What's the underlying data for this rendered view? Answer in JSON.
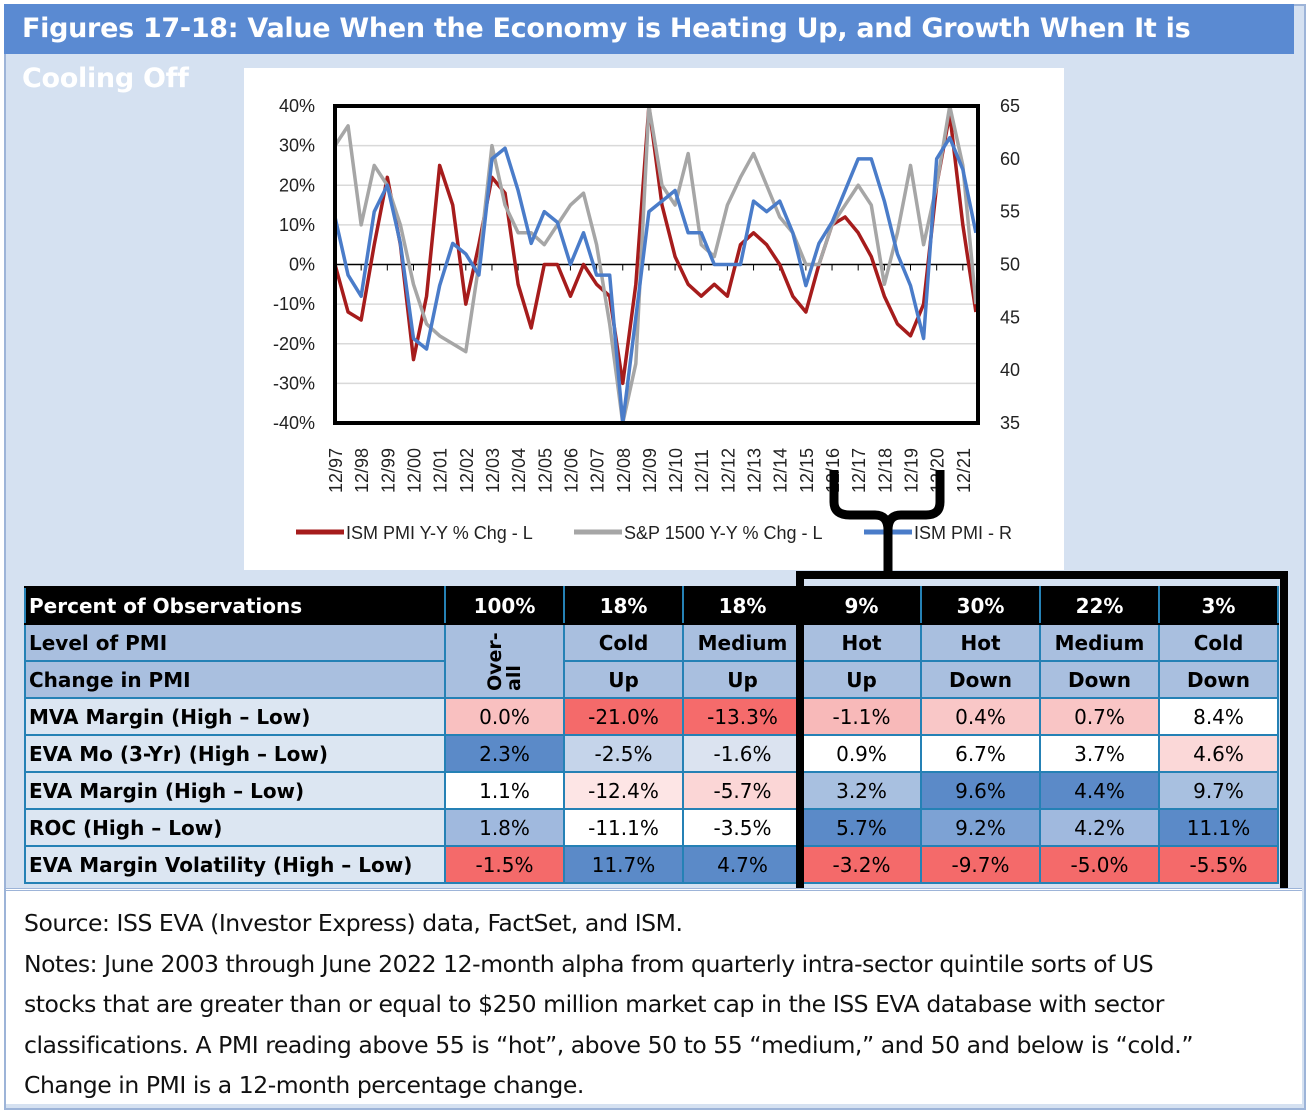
{
  "title": "Figures 17-18: Value When the Economy is Heating Up, and Growth When It is Cooling Off",
  "chart_data": {
    "type": "line",
    "x_labels": [
      "12/97",
      "12/98",
      "12/99",
      "12/00",
      "12/01",
      "12/02",
      "12/03",
      "12/04",
      "12/05",
      "12/06",
      "12/07",
      "12/08",
      "12/09",
      "12/10",
      "12/11",
      "12/12",
      "12/13",
      "12/14",
      "12/15",
      "12/16",
      "12/17",
      "12/18",
      "12/19",
      "12/20",
      "12/21"
    ],
    "x_start": 1997.92,
    "x_end": 2022.42,
    "x_step": 0.5,
    "left_axis": {
      "ticks": [
        "40%",
        "30%",
        "20%",
        "10%",
        "0%",
        "-10%",
        "-20%",
        "-30%",
        "-40%"
      ],
      "range": [
        -40,
        40
      ]
    },
    "right_axis": {
      "ticks": [
        "65",
        "60",
        "55",
        "50",
        "45",
        "40",
        "35"
      ],
      "range": [
        35,
        65
      ]
    },
    "series": [
      {
        "name": "ISM PMI Y-Y % Chg - L",
        "axis": "left",
        "color": "#a61c1c",
        "values": [
          0,
          -12,
          -14,
          5,
          22,
          5,
          -24,
          -8,
          25,
          15,
          -10,
          5,
          22,
          18,
          -5,
          -16,
          0,
          0,
          -8,
          0,
          -5,
          -8,
          -30,
          -5,
          40,
          15,
          2,
          -5,
          -8,
          -5,
          -8,
          5,
          8,
          5,
          0,
          -8,
          -12,
          0,
          10,
          12,
          8,
          2,
          -8,
          -15,
          -18,
          -10,
          20,
          38,
          10,
          -12
        ]
      },
      {
        "name": "S&P 1500 Y-Y % Chg - L",
        "axis": "left",
        "color": "#a6a6a6",
        "values": [
          30,
          35,
          10,
          25,
          20,
          10,
          -5,
          -15,
          -18,
          -20,
          -22,
          0,
          30,
          15,
          8,
          8,
          5,
          10,
          15,
          18,
          5,
          -15,
          -40,
          -25,
          40,
          20,
          15,
          28,
          5,
          2,
          15,
          22,
          28,
          20,
          12,
          8,
          0,
          0,
          10,
          15,
          20,
          15,
          -5,
          8,
          25,
          5,
          20,
          40,
          25,
          -10
        ]
      },
      {
        "name": "ISM PMI - R",
        "axis": "right",
        "color": "#4a7cc9",
        "values": [
          54.5,
          49,
          47,
          55,
          57.5,
          52,
          43,
          42,
          48,
          52,
          51,
          49,
          60,
          61,
          57,
          52,
          55,
          54,
          50,
          53,
          49,
          49,
          35,
          45,
          55,
          56,
          57,
          53,
          53,
          50,
          50,
          50,
          56,
          55,
          56,
          53,
          48,
          52,
          54,
          57,
          60,
          60,
          56,
          51,
          48,
          43,
          60,
          62,
          59,
          53
        ]
      }
    ],
    "legend_position": "bottom"
  },
  "table": {
    "header": {
      "label": "Percent of Observations",
      "values": [
        "100%",
        "18%",
        "18%",
        "9%",
        "30%",
        "22%",
        "3%"
      ]
    },
    "level": {
      "label": "Level of PMI",
      "overall": "Over-all",
      "values": [
        "Cold",
        "Medium",
        "Hot",
        "Hot",
        "Medium",
        "Cold"
      ]
    },
    "change": {
      "label": "Change in PMI",
      "values": [
        "Up",
        "Up",
        "Up",
        "Down",
        "Down",
        "Down"
      ]
    },
    "rows": [
      {
        "label": "MVA Margin (High – Low)",
        "cells": [
          {
            "v": "0.0%",
            "c": "#f9c0c0"
          },
          {
            "v": "-21.0%",
            "c": "#f46a6a"
          },
          {
            "v": "-13.3%",
            "c": "#f56b6b"
          },
          {
            "v": "-1.1%",
            "c": "#f8b9b9"
          },
          {
            "v": "0.4%",
            "c": "#f9c7c7"
          },
          {
            "v": "0.7%",
            "c": "#f9c5c5"
          },
          {
            "v": "8.4%",
            "c": "#ffffff"
          }
        ]
      },
      {
        "label": "EVA Mo (3-Yr) (High – Low)",
        "cells": [
          {
            "v": "2.3%",
            "c": "#5b8ac8"
          },
          {
            "v": "-2.5%",
            "c": "#c5d4ea"
          },
          {
            "v": "-1.6%",
            "c": "#dbe3f0"
          },
          {
            "v": "0.9%",
            "c": "#ffffff"
          },
          {
            "v": "6.7%",
            "c": "#ffffff"
          },
          {
            "v": "3.7%",
            "c": "#ffffff"
          },
          {
            "v": "4.6%",
            "c": "#fbd8d8"
          }
        ]
      },
      {
        "label": "EVA Margin (High – Low)",
        "cells": [
          {
            "v": "1.1%",
            "c": "#ffffff"
          },
          {
            "v": "-12.4%",
            "c": "#fde5e5"
          },
          {
            "v": "-5.7%",
            "c": "#fbd6d6"
          },
          {
            "v": "3.2%",
            "c": "#a8c0e0"
          },
          {
            "v": "9.6%",
            "c": "#5b8ac8"
          },
          {
            "v": "4.4%",
            "c": "#5b8ac8"
          },
          {
            "v": "9.7%",
            "c": "#a8c0e0"
          }
        ]
      },
      {
        "label": "ROC (High – Low)",
        "cells": [
          {
            "v": "1.8%",
            "c": "#a0b9de"
          },
          {
            "v": "-11.1%",
            "c": "#ffffff"
          },
          {
            "v": "-3.5%",
            "c": "#ffffff"
          },
          {
            "v": "5.7%",
            "c": "#5b8ac8"
          },
          {
            "v": "9.2%",
            "c": "#7da2d4"
          },
          {
            "v": "4.2%",
            "c": "#a0b9de"
          },
          {
            "v": "11.1%",
            "c": "#5b8ac8"
          }
        ]
      },
      {
        "label": "EVA Margin Volatility (High – Low)",
        "cells": [
          {
            "v": "-1.5%",
            "c": "#f46a6a"
          },
          {
            "v": "11.7%",
            "c": "#5b8ac8"
          },
          {
            "v": "4.7%",
            "c": "#5b8ac8"
          },
          {
            "v": "-3.2%",
            "c": "#f46a6a"
          },
          {
            "v": "-9.7%",
            "c": "#f46a6a"
          },
          {
            "v": "-5.0%",
            "c": "#f46a6a"
          },
          {
            "v": "-5.5%",
            "c": "#f46a6a"
          }
        ]
      }
    ]
  },
  "notes": {
    "source": "Source: ISS EVA (Investor Express) data, FactSet, and ISM.",
    "lines": [
      "Notes: June 2003 through June 2022 12-month alpha from quarterly intra-sector quintile sorts of US",
      "stocks that are greater than or equal to $250 million market cap in the ISS EVA database with sector",
      "classifications. A PMI reading above 55 is “hot”, above 50 to 55 “medium,” and 50 and below is “cold.”",
      "Change in PMI is a 12-month percentage change."
    ]
  }
}
